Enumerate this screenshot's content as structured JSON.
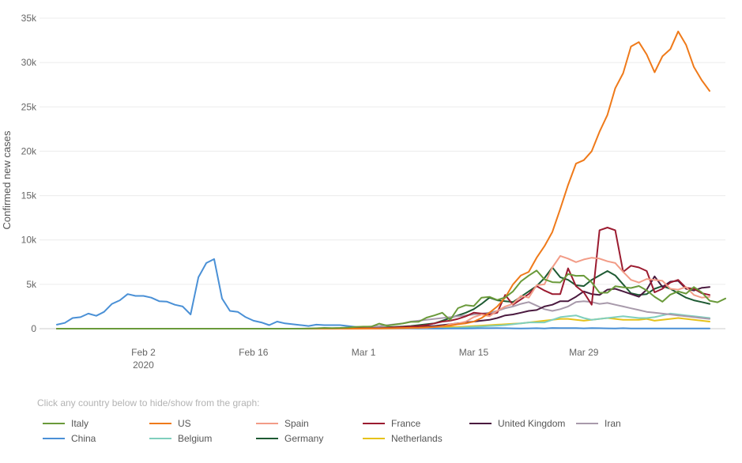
{
  "chart_data": {
    "type": "line",
    "title": "",
    "xlabel": "",
    "ylabel": "Confirmed new cases",
    "ylim": [
      0,
      35000
    ],
    "y_ticks": [
      "0",
      "5k",
      "10k",
      "15k",
      "20k",
      "25k",
      "30k",
      "35k"
    ],
    "x_ticks": [
      {
        "label": "Feb 2",
        "sublabel": "2020",
        "date": "2020-02-02"
      },
      {
        "label": "Feb 16",
        "sublabel": "",
        "date": "2020-02-16"
      },
      {
        "label": "Mar 1",
        "sublabel": "",
        "date": "2020-03-01"
      },
      {
        "label": "Mar 15",
        "sublabel": "",
        "date": "2020-03-15"
      },
      {
        "label": "Mar 29",
        "sublabel": "",
        "date": "2020-03-29"
      }
    ],
    "x_start": "2020-01-22",
    "x_end": "2020-04-15",
    "grid": true,
    "legend_position": "bottom",
    "legend_hint": "Click any country below to hide/show from the graph:",
    "series": [
      {
        "name": "Italy",
        "color": "#6a9a3a",
        "start": "2020-01-22",
        "values": [
          0,
          0,
          0,
          0,
          0,
          0,
          0,
          0,
          0,
          2,
          0,
          0,
          0,
          0,
          0,
          0,
          0,
          0,
          0,
          0,
          0,
          0,
          0,
          0,
          0,
          0,
          0,
          0,
          0,
          0,
          0,
          0,
          17,
          42,
          93,
          74,
          93,
          131,
          202,
          233,
          240,
          566,
          342,
          466,
          587,
          769,
          778,
          1247,
          1492,
          1797,
          977,
          2313,
          2651,
          2547,
          3497,
          3590,
          3233,
          3526,
          4207,
          5322,
          5986,
          6557,
          5560,
          5249,
          5210,
          6153,
          5959,
          5974,
          5217,
          4050,
          4053,
          4782,
          4668,
          4585,
          4805,
          4316,
          3599,
          3039,
          3836,
          4204,
          3951,
          4694,
          4092,
          3153,
          2972,
          3400
        ]
      },
      {
        "name": "US",
        "color": "#ef7a1a",
        "start": "2020-01-22",
        "values": [
          0,
          0,
          0,
          0,
          1,
          0,
          0,
          0,
          0,
          1,
          1,
          2,
          0,
          2,
          0,
          0,
          1,
          0,
          0,
          0,
          0,
          0,
          0,
          0,
          0,
          0,
          0,
          0,
          0,
          0,
          0,
          0,
          0,
          0,
          0,
          0,
          5,
          2,
          4,
          10,
          14,
          20,
          33,
          50,
          80,
          100,
          110,
          150,
          180,
          300,
          350,
          500,
          600,
          800,
          1200,
          1800,
          2500,
          3500,
          5000,
          6000,
          6400,
          8000,
          9300,
          10900,
          13500,
          16200,
          18600,
          19000,
          20000,
          22200,
          24100,
          27100,
          28800,
          31800,
          32300,
          30900,
          28900,
          30700,
          31500,
          33500,
          32000,
          29500,
          28000,
          26800
        ]
      },
      {
        "name": "Spain",
        "color": "#f29c87",
        "start": "2020-01-22",
        "values": [
          0,
          0,
          0,
          0,
          0,
          0,
          0,
          0,
          0,
          0,
          1,
          0,
          0,
          0,
          0,
          0,
          0,
          0,
          0,
          0,
          1,
          0,
          0,
          0,
          0,
          0,
          0,
          0,
          0,
          0,
          0,
          0,
          0,
          0,
          0,
          0,
          0,
          0,
          0,
          4,
          2,
          15,
          17,
          30,
          34,
          50,
          80,
          100,
          190,
          250,
          500,
          580,
          800,
          1300,
          1600,
          1400,
          2000,
          2500,
          2800,
          3700,
          3500,
          4900,
          5000,
          6900,
          8200,
          7900,
          7500,
          7800,
          8000,
          7900,
          7600,
          7400,
          6400,
          5500,
          5200,
          5600,
          5500,
          5400,
          4500,
          4400,
          4700,
          3800,
          3500,
          3600
        ]
      },
      {
        "name": "France",
        "color": "#9b1b30",
        "start": "2020-01-22",
        "values": [
          0,
          0,
          0,
          3,
          0,
          0,
          1,
          1,
          0,
          0,
          0,
          0,
          0,
          0,
          0,
          0,
          0,
          0,
          0,
          0,
          0,
          0,
          0,
          0,
          0,
          0,
          0,
          0,
          0,
          0,
          0,
          0,
          0,
          0,
          2,
          4,
          20,
          20,
          40,
          50,
          60,
          70,
          100,
          150,
          200,
          250,
          300,
          400,
          600,
          800,
          900,
          1100,
          1400,
          1800,
          1700,
          1600,
          1800,
          3800,
          2700,
          3300,
          3900,
          4800,
          4300,
          3900,
          3900,
          6800,
          4800,
          4100,
          2700,
          11100,
          11400,
          11100,
          6400,
          7100,
          6900,
          6500,
          4100,
          4500,
          5200,
          5500,
          4600,
          4500,
          4000,
          3800
        ]
      },
      {
        "name": "United Kingdom",
        "color": "#4a1a3f",
        "start": "2020-01-22",
        "values": [
          0,
          0,
          0,
          0,
          0,
          0,
          0,
          0,
          0,
          2,
          0,
          0,
          0,
          0,
          0,
          0,
          0,
          0,
          0,
          1,
          0,
          0,
          0,
          0,
          0,
          0,
          0,
          0,
          0,
          0,
          0,
          0,
          0,
          0,
          4,
          3,
          4,
          10,
          10,
          20,
          30,
          40,
          50,
          70,
          100,
          150,
          200,
          250,
          300,
          400,
          500,
          600,
          700,
          800,
          900,
          1000,
          1200,
          1500,
          1600,
          1800,
          2000,
          2100,
          2500,
          2700,
          3100,
          3100,
          3600,
          4200,
          3900,
          3800,
          4400,
          4500,
          4200,
          3900,
          3600,
          4400,
          5900,
          4700,
          5300,
          5400,
          4500,
          4300,
          4600,
          4700
        ]
      },
      {
        "name": "Iran",
        "color": "#a89aab",
        "start": "2020-01-22",
        "values": [
          0,
          0,
          0,
          0,
          0,
          0,
          0,
          0,
          0,
          0,
          0,
          0,
          0,
          0,
          0,
          0,
          0,
          0,
          0,
          0,
          0,
          0,
          0,
          0,
          0,
          0,
          0,
          0,
          0,
          2,
          3,
          13,
          10,
          15,
          20,
          40,
          60,
          100,
          150,
          200,
          250,
          300,
          400,
          500,
          600,
          800,
          900,
          1000,
          1100,
          1200,
          1300,
          1400,
          1500,
          1600,
          1700,
          1800,
          2000,
          2300,
          2500,
          2800,
          3000,
          2600,
          2200,
          2000,
          2200,
          2500,
          3000,
          3100,
          3000,
          2800,
          2900,
          2700,
          2500,
          2300,
          2100,
          1900,
          1800,
          1700,
          1600,
          1500,
          1400,
          1300,
          1200,
          1100
        ]
      },
      {
        "name": "China",
        "color": "#4a90d6",
        "start": "2020-01-22",
        "values": [
          450,
          650,
          1200,
          1300,
          1700,
          1450,
          1900,
          2800,
          3200,
          3900,
          3700,
          3700,
          3500,
          3100,
          3050,
          2700,
          2500,
          1600,
          5800,
          7400,
          7850,
          3400,
          2000,
          1900,
          1300,
          900,
          700,
          400,
          800,
          600,
          500,
          400,
          300,
          450,
          400,
          400,
          400,
          300,
          200,
          150,
          100,
          80,
          60,
          40,
          30,
          20,
          20,
          15,
          15,
          15,
          20,
          20,
          30,
          40,
          50,
          50,
          60,
          50,
          40,
          30,
          40,
          50,
          30,
          80,
          60,
          70,
          70,
          40,
          60,
          50,
          40,
          30,
          50,
          30,
          20,
          20,
          20,
          20,
          20,
          30,
          30,
          30,
          30,
          30
        ]
      },
      {
        "name": "Belgium",
        "color": "#7fcfbd",
        "start": "2020-01-22",
        "values": [
          0,
          0,
          0,
          0,
          0,
          0,
          0,
          0,
          0,
          0,
          0,
          0,
          0,
          0,
          0,
          0,
          0,
          0,
          0,
          0,
          0,
          0,
          0,
          0,
          0,
          0,
          0,
          0,
          0,
          0,
          0,
          0,
          0,
          0,
          0,
          0,
          0,
          0,
          0,
          0,
          0,
          0,
          0,
          1,
          1,
          8,
          6,
          40,
          30,
          10,
          70,
          100,
          150,
          200,
          250,
          300,
          350,
          400,
          500,
          600,
          700,
          700,
          700,
          1000,
          1300,
          1400,
          1500,
          1200,
          1000,
          1100,
          1200,
          1300,
          1400,
          1300,
          1200,
          1200,
          1300,
          1500,
          1700,
          1600,
          1500,
          1400,
          1300,
          1200
        ]
      },
      {
        "name": "Germany",
        "color": "#1e5a33",
        "start": "2020-01-22",
        "values": [
          0,
          0,
          0,
          0,
          0,
          4,
          1,
          0,
          0,
          0,
          0,
          0,
          0,
          0,
          0,
          0,
          0,
          0,
          0,
          0,
          0,
          0,
          0,
          0,
          0,
          0,
          0,
          0,
          0,
          0,
          0,
          0,
          0,
          0,
          0,
          16,
          30,
          40,
          50,
          70,
          90,
          120,
          150,
          200,
          250,
          300,
          400,
          500,
          600,
          900,
          1200,
          1500,
          1800,
          2200,
          2800,
          3500,
          3200,
          3100,
          3000,
          3600,
          4200,
          4800,
          5700,
          6900,
          5800,
          5500,
          4900,
          4800,
          5500,
          6000,
          6500,
          6000,
          5000,
          4000,
          3800,
          3900,
          4500,
          4800,
          4500,
          4000,
          3500,
          3200,
          3000,
          2800
        ]
      },
      {
        "name": "Netherlands",
        "color": "#e6c21a",
        "start": "2020-01-22",
        "values": [
          0,
          0,
          0,
          0,
          0,
          0,
          0,
          0,
          0,
          0,
          0,
          0,
          0,
          0,
          0,
          0,
          0,
          0,
          0,
          0,
          0,
          0,
          0,
          0,
          0,
          0,
          0,
          0,
          0,
          0,
          0,
          0,
          0,
          0,
          0,
          0,
          0,
          0,
          0,
          1,
          1,
          6,
          10,
          20,
          40,
          60,
          80,
          100,
          150,
          180,
          190,
          200,
          250,
          300,
          350,
          400,
          450,
          500,
          550,
          600,
          700,
          800,
          900,
          1000,
          1100,
          1100,
          1000,
          900,
          1000,
          1100,
          1200,
          1100,
          1000,
          1000,
          1000,
          1100,
          900,
          1000,
          1100,
          1200,
          1100,
          1000,
          900,
          800
        ]
      }
    ]
  }
}
